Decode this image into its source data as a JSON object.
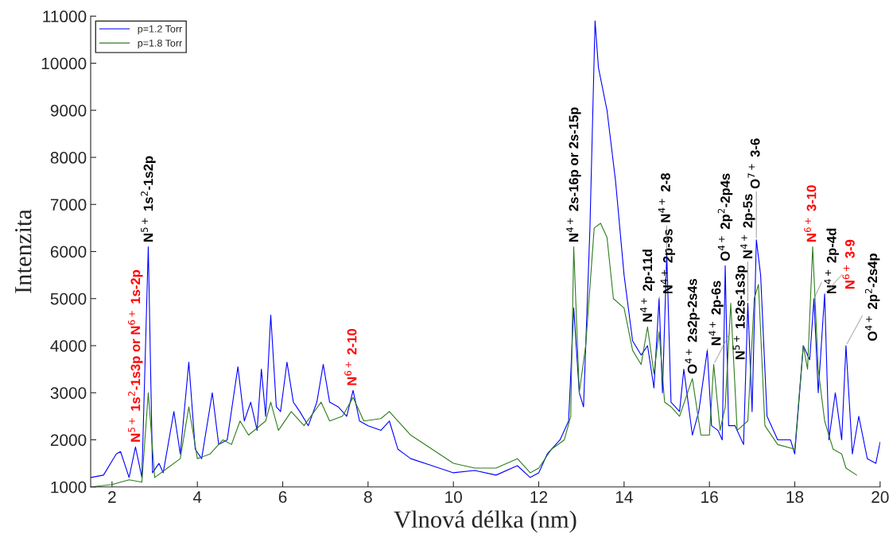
{
  "chart_data": {
    "type": "line",
    "xlabel": "Vlnová délka (nm)",
    "ylabel": "Intenzita",
    "xlim": [
      1.5,
      20
    ],
    "xticks": [
      2,
      4,
      6,
      8,
      10,
      12,
      14,
      16,
      18,
      20
    ],
    "ylim": [
      1000,
      11000
    ],
    "yticks": [
      1000,
      2000,
      3000,
      4000,
      5000,
      6000,
      7000,
      8000,
      9000,
      10000,
      11000
    ],
    "grid": false,
    "legend": "top left",
    "marker": "none",
    "line_style": "solid",
    "series": [
      {
        "name": "p=1.2 Torr",
        "color": "#0000ff",
        "x": [
          1.5,
          1.8,
          2.1,
          2.2,
          2.4,
          2.55,
          2.7,
          2.85,
          2.95,
          3.1,
          3.2,
          3.45,
          3.6,
          3.8,
          3.95,
          4.1,
          4.35,
          4.5,
          4.7,
          4.95,
          5.1,
          5.25,
          5.4,
          5.5,
          5.6,
          5.72,
          5.85,
          5.95,
          6.1,
          6.25,
          6.4,
          6.6,
          6.8,
          6.95,
          7.1,
          7.3,
          7.5,
          7.65,
          7.8,
          8.0,
          8.3,
          8.5,
          8.7,
          9.0,
          9.5,
          10.0,
          10.5,
          11.0,
          11.5,
          11.8,
          12.0,
          12.2,
          12.5,
          12.7,
          12.82,
          12.95,
          13.05,
          13.2,
          13.32,
          13.4,
          13.6,
          13.8,
          14.0,
          14.2,
          14.4,
          14.55,
          14.7,
          14.82,
          14.9,
          15.0,
          15.1,
          15.3,
          15.4,
          15.6,
          15.75,
          15.95,
          16.05,
          16.2,
          16.3,
          16.37,
          16.45,
          16.6,
          16.8,
          16.9,
          17.0,
          17.1,
          17.2,
          17.35,
          17.6,
          17.9,
          18.0,
          18.2,
          18.35,
          18.45,
          18.55,
          18.7,
          18.8,
          18.95,
          19.1,
          19.2,
          19.35,
          19.5,
          19.7,
          19.9,
          20.0
        ],
        "values": [
          1200,
          1250,
          1700,
          1750,
          1200,
          1850,
          1200,
          6100,
          1300,
          1500,
          1300,
          2600,
          1700,
          3650,
          1800,
          1600,
          3000,
          1900,
          2000,
          3550,
          2400,
          2800,
          2200,
          3500,
          2500,
          4650,
          2700,
          2600,
          3650,
          2800,
          2600,
          2300,
          2800,
          3600,
          2800,
          2700,
          2500,
          3050,
          2400,
          2300,
          2200,
          2400,
          1800,
          1600,
          1450,
          1300,
          1350,
          1250,
          1450,
          1200,
          1300,
          1700,
          2000,
          2400,
          4800,
          3000,
          2700,
          6500,
          10900,
          9900,
          9000,
          7500,
          5500,
          4100,
          3800,
          4000,
          3100,
          5000,
          3000,
          5950,
          2800,
          2600,
          3500,
          2100,
          2600,
          3900,
          2300,
          2200,
          2000,
          5700,
          2300,
          2300,
          1900,
          4900,
          2600,
          6250,
          5500,
          2500,
          2000,
          2000,
          1700,
          4000,
          3700,
          5000,
          3000,
          5100,
          2000,
          3000,
          2000,
          4000,
          1700,
          2500,
          1600,
          1500,
          1950
        ]
      },
      {
        "name": "p=1.8 Torr",
        "color": "#2e7d1e",
        "x": [
          1.5,
          2.0,
          2.4,
          2.7,
          2.85,
          3.0,
          3.3,
          3.6,
          3.8,
          4.0,
          4.3,
          4.6,
          4.8,
          5.0,
          5.2,
          5.6,
          5.72,
          5.9,
          6.2,
          6.5,
          6.9,
          7.1,
          7.4,
          7.65,
          7.9,
          8.3,
          8.5,
          8.7,
          9.0,
          9.5,
          10.0,
          10.5,
          11.0,
          11.5,
          11.8,
          12.0,
          12.3,
          12.6,
          12.75,
          12.82,
          12.95,
          13.1,
          13.3,
          13.45,
          13.6,
          13.75,
          14.0,
          14.2,
          14.4,
          14.55,
          14.7,
          14.82,
          14.95,
          15.1,
          15.3,
          15.6,
          15.8,
          16.0,
          16.1,
          16.25,
          16.37,
          16.5,
          16.65,
          16.9,
          17.05,
          17.15,
          17.3,
          17.6,
          18.0,
          18.2,
          18.3,
          18.42,
          18.55,
          18.7,
          18.9,
          19.1,
          19.2,
          19.45
        ],
        "values": [
          1000,
          1050,
          1150,
          1100,
          3000,
          1200,
          1400,
          1600,
          2700,
          1600,
          1700,
          2000,
          1900,
          2400,
          2100,
          2400,
          2800,
          2200,
          2600,
          2300,
          2800,
          2400,
          2500,
          2900,
          2400,
          2450,
          2600,
          2400,
          2100,
          1800,
          1500,
          1400,
          1400,
          1600,
          1300,
          1400,
          1800,
          2000,
          2500,
          6100,
          3000,
          4000,
          6500,
          6600,
          6300,
          5000,
          4800,
          3900,
          3600,
          4400,
          3400,
          4300,
          2800,
          2700,
          2500,
          3300,
          2100,
          2100,
          3600,
          2200,
          2700,
          4900,
          2200,
          2400,
          5000,
          5300,
          2300,
          1900,
          1800,
          4000,
          3500,
          6100,
          3500,
          2400,
          1800,
          1700,
          1400,
          1250
        ]
      }
    ],
    "annotations": [
      {
        "text": "N$^{5+}$ 1s$^{2}$-1s2p",
        "x": 2.85,
        "y": 6100
      },
      {
        "text": "N$^{5+}$ 1s$^{2}$-1s3p or N$^{6+}$ 1s-2p",
        "x": 2.55,
        "y": 1850
      },
      {
        "text": "N$^{6+}$ 2-10",
        "x": 7.65,
        "y": 3050
      },
      {
        "text": "N$^{4+}$ 2s-16p or 2s-15p",
        "x": 12.82,
        "y": 6100
      },
      {
        "text": "N$^{4+}$ 2p-11d",
        "x": 14.55,
        "y": 4400
      },
      {
        "text": "N$^{4+}$ 2p-9s",
        "x": 14.82,
        "y": 5000
      },
      {
        "text": "N$^{4+}$ 2-8",
        "x": 15.0,
        "y": 5950
      },
      {
        "text": "O$^{4+}$ 2s2p-2s4s",
        "x": 15.6,
        "y": 3300
      },
      {
        "text": "N$^{4+}$ 2p-6s",
        "x": 15.95,
        "y": 3900
      },
      {
        "text": "N$^{5+}$ 1s2s-1s3p",
        "x": 16.1,
        "y": 3600
      },
      {
        "text": "O$^{4+}$ 2p$^{2}$-2p4s",
        "x": 16.37,
        "y": 5700
      },
      {
        "text": "N$^{4+}$ 2p-5s",
        "x": 16.9,
        "y": 4900
      },
      {
        "text": "O$^{7+}$ 3-6",
        "x": 17.1,
        "y": 6250
      },
      {
        "text": "N$^{6+}$ 3-10",
        "x": 18.42,
        "y": 6100
      },
      {
        "text": "N$^{4+}$ 2p-4d",
        "x": 18.45,
        "y": 5000
      },
      {
        "text": "N$^{6+}$ 3-9",
        "x": 18.7,
        "y": 5100
      },
      {
        "text": "O$^{4+}$ 2p$^{2}$-2s4p",
        "x": 19.2,
        "y": 4000
      }
    ]
  }
}
